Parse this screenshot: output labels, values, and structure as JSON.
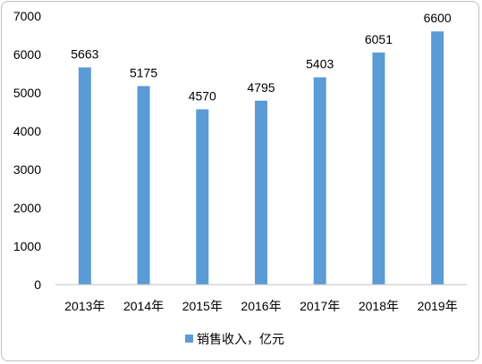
{
  "chart_data": {
    "type": "bar",
    "categories": [
      "2013年",
      "2014年",
      "2015年",
      "2016年",
      "2017年",
      "2018年",
      "2019年"
    ],
    "series": [
      {
        "name": "销售收入，亿元",
        "values": [
          5663,
          5175,
          4570,
          4795,
          5403,
          6051,
          6600
        ],
        "color": "#5b9bd5"
      }
    ],
    "ylim": [
      0,
      7000
    ],
    "yticks": [
      0,
      1000,
      2000,
      3000,
      4000,
      5000,
      6000,
      7000
    ],
    "grid": false,
    "legend_position": "bottom",
    "data_labels": true
  }
}
